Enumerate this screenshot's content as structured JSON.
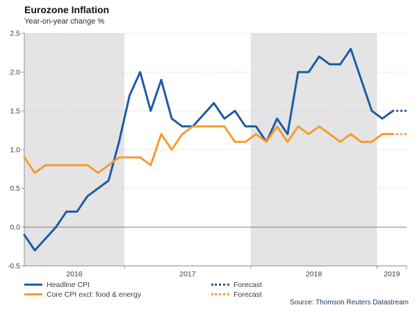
{
  "chart_data": {
    "type": "line",
    "title": "Eurozone Inflation",
    "subtitle": "Year-on-year change %",
    "x_start": "2016-03",
    "x_end": "2019-02",
    "frequency": "monthly",
    "x_tick_labels": [
      "2016",
      "2017",
      "2018",
      "2019"
    ],
    "ylim": [
      -0.5,
      2.5
    ],
    "y_ticks": [
      2.5,
      2.0,
      1.5,
      1.0,
      0.5,
      0.0,
      -0.5
    ],
    "shaded_year_bands": [
      "2016",
      "2018"
    ],
    "grid": "dotted-horizontal",
    "legend_position": "bottom-left",
    "series": [
      {
        "name": "Headline CPI",
        "style": "solid",
        "color": "#1b5aa7",
        "values": [
          -0.1,
          -0.3,
          -0.15,
          0.0,
          0.2,
          0.2,
          0.4,
          0.5,
          0.6,
          1.1,
          1.7,
          2.0,
          1.5,
          1.9,
          1.4,
          1.3,
          1.3,
          1.45,
          1.6,
          1.4,
          1.5,
          1.3,
          1.3,
          1.1,
          1.4,
          1.2,
          2.0,
          2.0,
          2.2,
          2.1,
          2.1,
          2.3,
          1.9,
          1.5,
          1.4,
          1.5
        ]
      },
      {
        "name": "Core CPI excl: food & energy",
        "style": "solid",
        "color": "#f89a2d",
        "values": [
          0.9,
          0.7,
          0.8,
          0.8,
          0.8,
          0.8,
          0.8,
          0.7,
          0.8,
          0.9,
          0.9,
          0.9,
          0.8,
          1.2,
          1.0,
          1.2,
          1.3,
          1.3,
          1.3,
          1.3,
          1.1,
          1.1,
          1.2,
          1.1,
          1.3,
          1.1,
          1.3,
          1.2,
          1.3,
          1.2,
          1.1,
          1.2,
          1.1,
          1.1,
          1.2,
          1.2
        ]
      },
      {
        "name": "Forecast",
        "style": "dotted",
        "color": "#1b5aa7",
        "values": [
          1.5,
          1.5
        ]
      },
      {
        "name": "Forecast",
        "style": "dotted",
        "color": "#f89a2d",
        "values": [
          1.2,
          1.2
        ]
      }
    ]
  },
  "legend": {
    "col1": [
      {
        "label": "Headline CPI"
      },
      {
        "label": "Core CPI excl: food & energy"
      }
    ],
    "col2": [
      {
        "label": "Forecast"
      },
      {
        "label": "Forecast"
      }
    ]
  },
  "source": "Source: Thomson Reuters Datastream",
  "colors": {
    "headline_blue": "#1b5aa7",
    "core_orange": "#f89a2d",
    "year_band": "#e4e4e4",
    "gridline": "#b9b9b9",
    "zero_line": "#7d7d7d",
    "axis": "#8f8f8f",
    "tick_text": "#3a3a3a",
    "title_text": "#111111",
    "source_text": "#17375e"
  }
}
